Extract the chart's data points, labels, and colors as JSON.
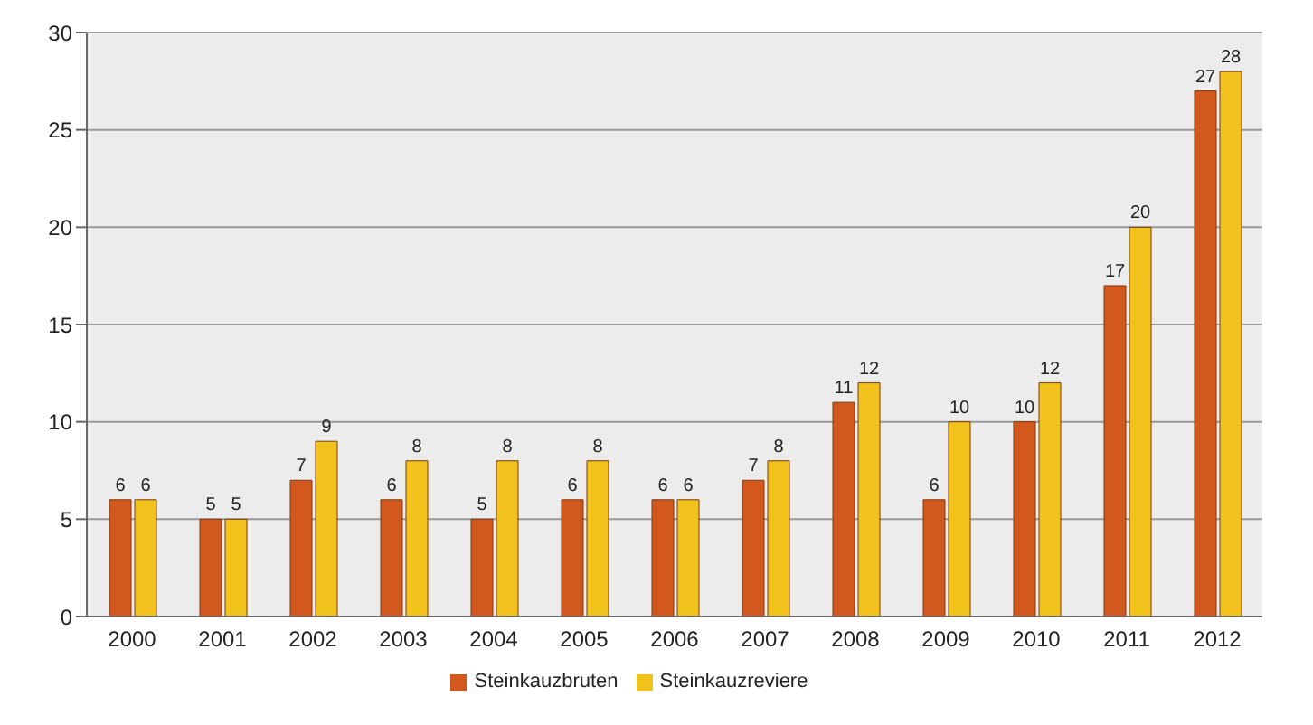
{
  "chart_data": {
    "type": "bar",
    "categories": [
      "2000",
      "2001",
      "2002",
      "2003",
      "2004",
      "2005",
      "2006",
      "2007",
      "2008",
      "2009",
      "2010",
      "2011",
      "2012"
    ],
    "series": [
      {
        "name": "Steinkauzbruten",
        "color": "#d2581e",
        "values": [
          6,
          5,
          7,
          6,
          5,
          6,
          6,
          7,
          11,
          6,
          10,
          17,
          27
        ]
      },
      {
        "name": "Steinkauzreviere",
        "color": "#f2c21c",
        "values": [
          6,
          5,
          9,
          8,
          8,
          8,
          6,
          8,
          12,
          10,
          12,
          20,
          28
        ]
      }
    ],
    "ylim": [
      0,
      30
    ],
    "yticks": [
      0,
      5,
      10,
      15,
      20,
      25,
      30
    ],
    "grid": "y",
    "legend": "bottom",
    "data_labels": true
  }
}
